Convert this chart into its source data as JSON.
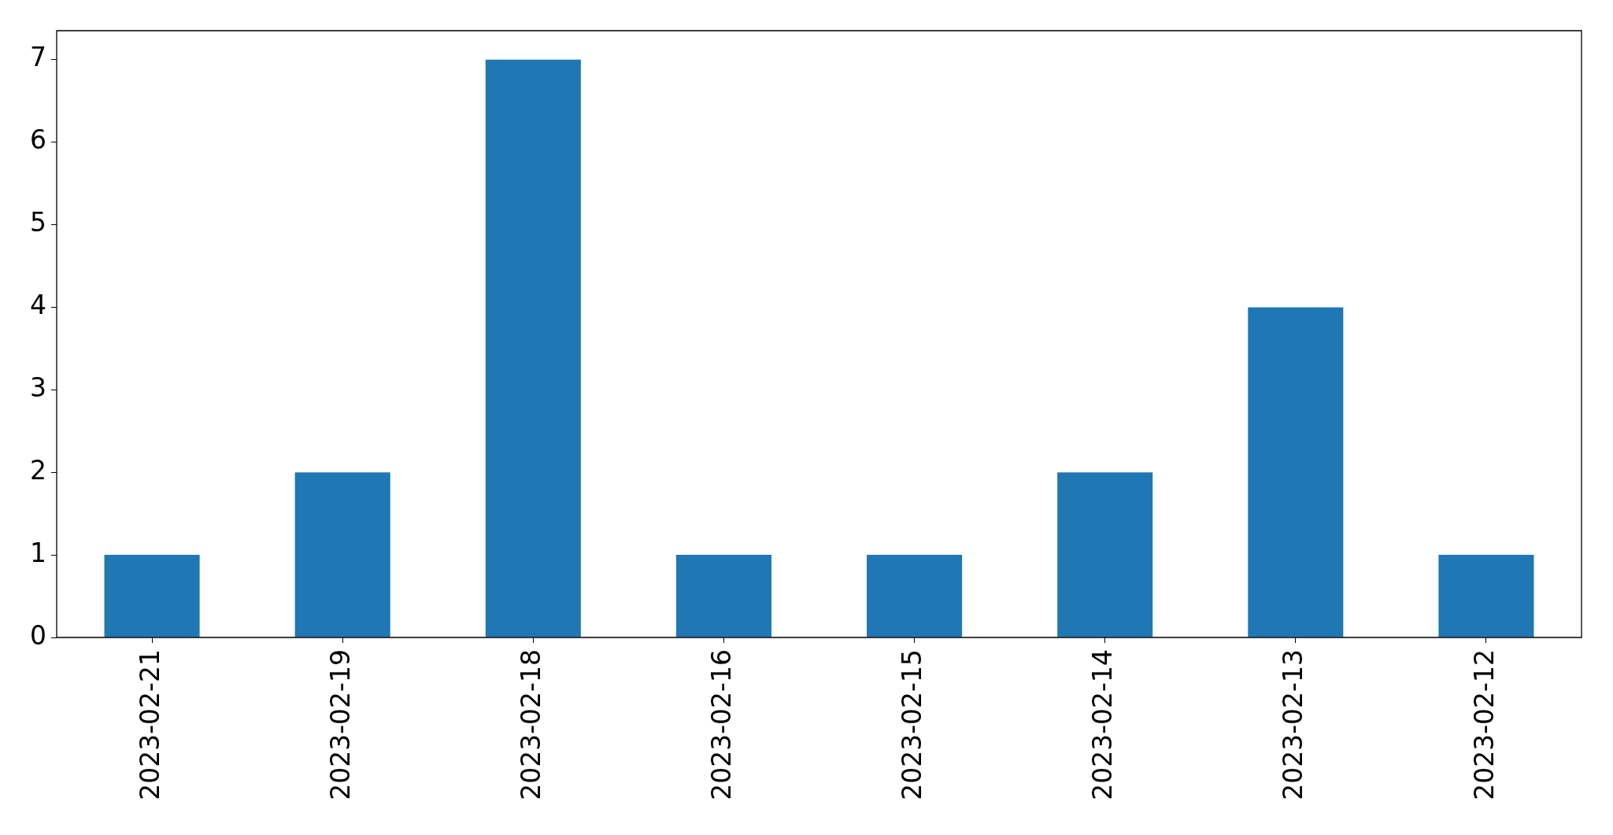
{
  "chart_data": {
    "type": "bar",
    "categories": [
      "2023-02-21",
      "2023-02-19",
      "2023-02-18",
      "2023-02-16",
      "2023-02-15",
      "2023-02-14",
      "2023-02-13",
      "2023-02-12"
    ],
    "values": [
      1,
      2,
      7,
      1,
      1,
      2,
      4,
      1
    ],
    "color": "#1f77b4",
    "ylim": [
      0,
      7.35
    ],
    "yticks": [
      0,
      1,
      2,
      3,
      4,
      5,
      6,
      7
    ]
  }
}
